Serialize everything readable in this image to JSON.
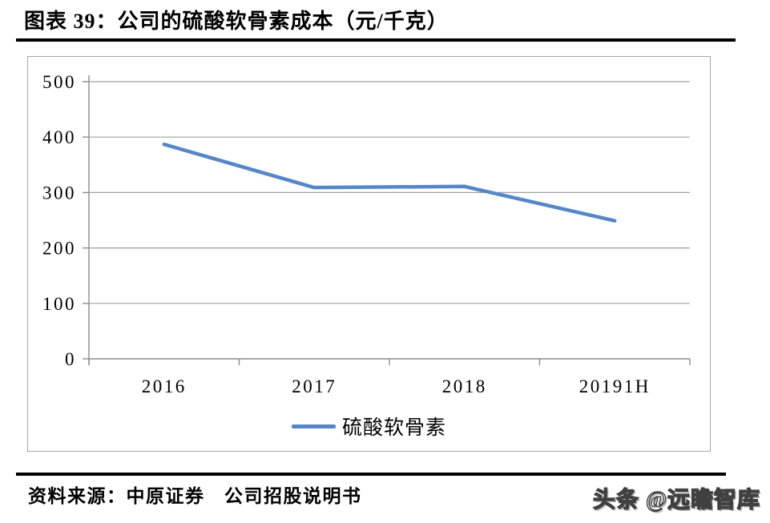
{
  "page": {
    "title": "图表 39：公司的硫酸软骨素成本（元/千克）",
    "source_label": "资料来源：中原证券　公司招股说明书",
    "watermark": "头条 @远瞻智库"
  },
  "chart_data": {
    "type": "line",
    "title": "图表 39：公司的硫酸软骨素成本（元/千克）",
    "categories": [
      "2016",
      "2017",
      "2018",
      "20191H"
    ],
    "series": [
      {
        "name": "硫酸软骨素",
        "values": [
          387,
          309,
          311,
          249
        ],
        "color": "#5587c8"
      }
    ],
    "xlabel": "",
    "ylabel": "",
    "unit": "元/千克",
    "ylim": [
      0,
      500
    ],
    "yticks": [
      0,
      100,
      200,
      300,
      400,
      500
    ],
    "grid": true,
    "legend_position": "bottom",
    "colors": {
      "gridline": "#a0a0a0",
      "axis": "#8c8c8c"
    }
  }
}
